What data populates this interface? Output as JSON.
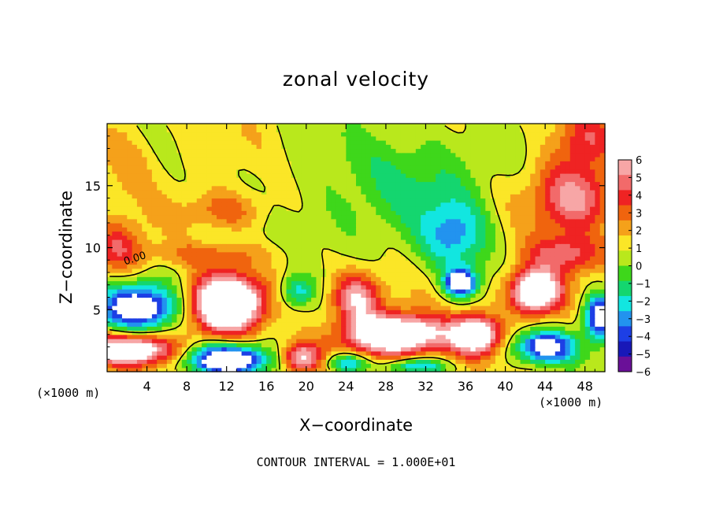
{
  "chart_data": {
    "type": "heatmap",
    "title": "zonal velocity",
    "xlabel": "X−coordinate",
    "ylabel": "Z−coordinate",
    "x_unit_left": "(×1000 m)",
    "x_unit_right": "(×1000 m)",
    "footer": "CONTOUR INTERVAL = 1.000E+01",
    "contour_label": "0.00",
    "xlim": [
      0,
      50
    ],
    "ylim": [
      0,
      20
    ],
    "x_ticks": [
      4,
      8,
      12,
      16,
      20,
      24,
      28,
      32,
      36,
      40,
      44,
      48
    ],
    "y_ticks": [
      5,
      10,
      15
    ],
    "colorbar": {
      "min": -6,
      "max": 6,
      "ticks": [
        6,
        5,
        4,
        3,
        2,
        1,
        0,
        -1,
        -2,
        -3,
        -4,
        -5,
        -6
      ],
      "colors": [
        "#f7a6a6",
        "#f26a6a",
        "#ef2323",
        "#f0640e",
        "#f5a11a",
        "#fbe627",
        "#b9e81c",
        "#3ed71b",
        "#14d66f",
        "#12e6e0",
        "#2293ef",
        "#1d3fe5",
        "#1818b8",
        "#6a1098"
      ]
    },
    "fields": {
      "background": 0.2,
      "blobs": [
        {
          "x": 12,
          "z": 13,
          "sx": 4,
          "sz": 1.6,
          "v": 2.8
        },
        {
          "x": 10,
          "z": 9.5,
          "sx": 6,
          "sz": 1,
          "v": 2.2
        },
        {
          "x": 1,
          "z": 10,
          "sx": 2.5,
          "sz": 2,
          "v": 3.5
        },
        {
          "x": 2,
          "z": 17,
          "sx": 3,
          "sz": 3,
          "v": 1.5
        },
        {
          "x": 47,
          "z": 14,
          "sx": 4,
          "sz": 3,
          "v": 5.5
        },
        {
          "x": 46,
          "z": 9.5,
          "sx": 4,
          "sz": 1.5,
          "v": 4
        },
        {
          "x": 48,
          "z": 19,
          "sx": 3,
          "sz": 2,
          "v": 3
        },
        {
          "x": 30,
          "z": 16,
          "sx": 7,
          "sz": 4,
          "v": -2.4
        },
        {
          "x": 35,
          "z": 11,
          "sx": 3.5,
          "sz": 3,
          "v": -4.5
        },
        {
          "x": 35.5,
          "z": 7.2,
          "sx": 1.6,
          "sz": 1.1,
          "v": -8
        },
        {
          "x": 22,
          "z": 12,
          "sx": 5,
          "sz": 3,
          "v": -1.2
        },
        {
          "x": 19,
          "z": 6.5,
          "sx": 1.6,
          "sz": 1.2,
          "v": -3.5
        },
        {
          "x": 3,
          "z": 5.2,
          "sx": 4,
          "sz": 1.8,
          "v": -8
        },
        {
          "x": 12,
          "z": 5.5,
          "sx": 3.4,
          "sz": 2.2,
          "v": 12
        },
        {
          "x": 2,
          "z": 1.8,
          "sx": 4.5,
          "sz": 1.2,
          "v": 9
        },
        {
          "x": 12,
          "z": 1,
          "sx": 4,
          "sz": 1.2,
          "v": -9
        },
        {
          "x": 29,
          "z": 3,
          "sx": 5,
          "sz": 1.6,
          "v": 10
        },
        {
          "x": 25,
          "z": 6,
          "sx": 2.5,
          "sz": 2,
          "v": 6
        },
        {
          "x": 37,
          "z": 3,
          "sx": 2.4,
          "sz": 1.6,
          "v": 9
        },
        {
          "x": 43,
          "z": 6.5,
          "sx": 2.6,
          "sz": 1.8,
          "v": 10
        },
        {
          "x": 44,
          "z": 2,
          "sx": 3,
          "sz": 1.3,
          "v": -8
        },
        {
          "x": 49.5,
          "z": 4.5,
          "sx": 1.6,
          "sz": 1.8,
          "v": -8
        },
        {
          "x": 19.5,
          "z": 1.2,
          "sx": 2,
          "sz": 1.2,
          "v": 6
        },
        {
          "x": 24,
          "z": 0.7,
          "sx": 2,
          "sz": 0.8,
          "v": -5
        },
        {
          "x": 31,
          "z": 0.5,
          "sx": 3,
          "sz": 0.6,
          "v": -4
        }
      ]
    }
  }
}
